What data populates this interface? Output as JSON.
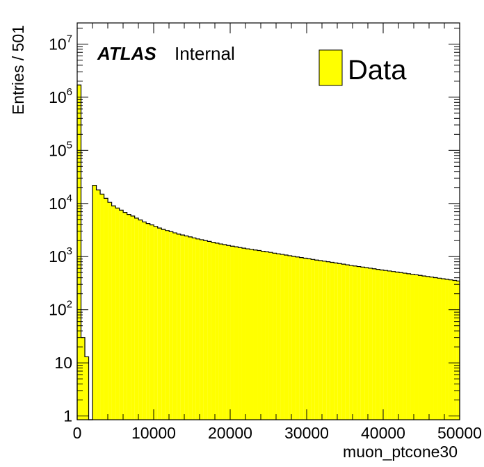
{
  "chart_data": {
    "type": "bar",
    "style": "filled-histogram",
    "xlabel": "muon_ptcone30",
    "ylabel": "Entries / 501",
    "label_bold": "ATLAS",
    "label_status": "Internal",
    "legend": [
      {
        "name": "Data",
        "color": "#ffff00"
      }
    ],
    "legend_position": "top-right",
    "xlim": [
      0,
      50000
    ],
    "ylim": [
      0.85,
      25000000
    ],
    "yscale": "log",
    "x_ticks": [
      0,
      10000,
      20000,
      30000,
      40000,
      50000
    ],
    "x_tick_labels": [
      "0",
      "10000",
      "20000",
      "30000",
      "40000",
      "50000"
    ],
    "y_ticks": [
      {
        "value": 1,
        "base": "1",
        "exp": ""
      },
      {
        "value": 10,
        "base": "10",
        "exp": ""
      },
      {
        "value": 100,
        "base": "10",
        "exp": "2"
      },
      {
        "value": 1000,
        "base": "10",
        "exp": "3"
      },
      {
        "value": 10000,
        "base": "10",
        "exp": "4"
      },
      {
        "value": 100000,
        "base": "10",
        "exp": "5"
      },
      {
        "value": 1000000,
        "base": "10",
        "exp": "6"
      },
      {
        "value": 10000000,
        "base": "10",
        "exp": "7"
      }
    ],
    "bin_width": 501,
    "grid": false,
    "fill_color": "#ffff00",
    "line_color": "#000000",
    "series": [
      {
        "name": "Data",
        "values": [
          1700000,
          30,
          13,
          0,
          22000,
          18000,
          15000,
          12500,
          10500,
          9000,
          8200,
          7500,
          6800,
          6200,
          5800,
          5300,
          4900,
          4500,
          4200,
          3950,
          3700,
          3450,
          3250,
          3100,
          2950,
          2800,
          2650,
          2550,
          2450,
          2350,
          2250,
          2150,
          2080,
          2000,
          1930,
          1860,
          1790,
          1730,
          1680,
          1620,
          1570,
          1530,
          1480,
          1440,
          1400,
          1370,
          1330,
          1300,
          1260,
          1230,
          1200,
          1160,
          1130,
          1100,
          1070,
          1040,
          1010,
          985,
          960,
          935,
          910,
          885,
          860,
          840,
          820,
          800,
          780,
          760,
          740,
          720,
          700,
          680,
          665,
          650,
          635,
          620,
          605,
          590,
          575,
          560,
          548,
          536,
          524,
          512,
          500,
          488,
          476,
          465,
          454,
          443,
          432,
          422,
          412,
          402,
          392,
          383,
          374,
          365,
          356,
          348
        ]
      }
    ]
  }
}
